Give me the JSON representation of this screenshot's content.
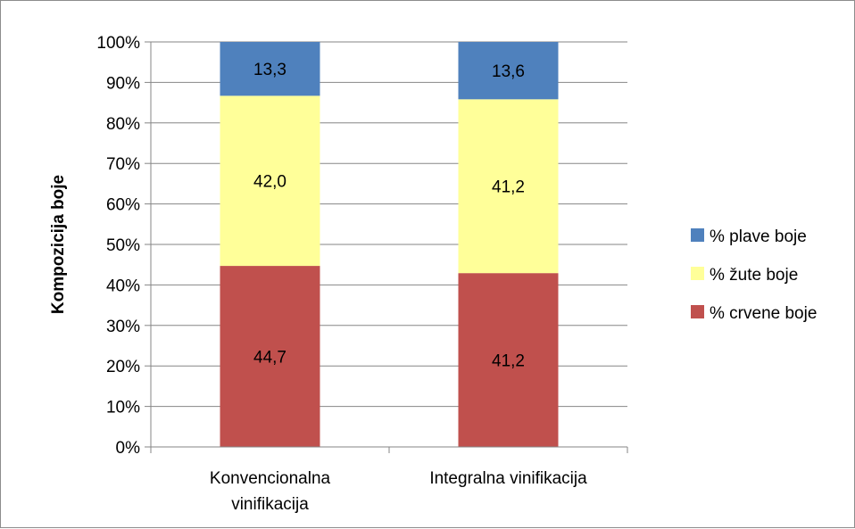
{
  "chart_data": {
    "type": "bar",
    "stacked": true,
    "categories": [
      [
        "Konvencionalna",
        "vinifikacija"
      ],
      [
        "Integralna vinifikacija"
      ]
    ],
    "series": [
      {
        "name": "% crvene boje",
        "color": "#c0504d",
        "values": [
          44.7,
          41.2
        ],
        "labels": [
          "44,7",
          "41,2"
        ]
      },
      {
        "name": "% žute boje",
        "color": "#ffff99",
        "values": [
          42.0,
          41.2
        ],
        "labels": [
          "42,0",
          "41,2"
        ]
      },
      {
        "name": "% plave boje",
        "color": "#4f81bd",
        "values": [
          13.3,
          13.6
        ],
        "labels": [
          "13,3",
          "13,6"
        ]
      }
    ],
    "normalize_to_percent": true,
    "ylabel": "Kompozicija boje",
    "xlabel": "",
    "ylim": [
      0,
      100
    ],
    "yticks": [
      "0%",
      "10%",
      "20%",
      "30%",
      "40%",
      "50%",
      "60%",
      "70%",
      "80%",
      "90%",
      "100%"
    ],
    "grid": true,
    "legend": {
      "placement": "right",
      "order": [
        "% plave boje",
        "% žute boje",
        "% crvene boje"
      ]
    }
  }
}
